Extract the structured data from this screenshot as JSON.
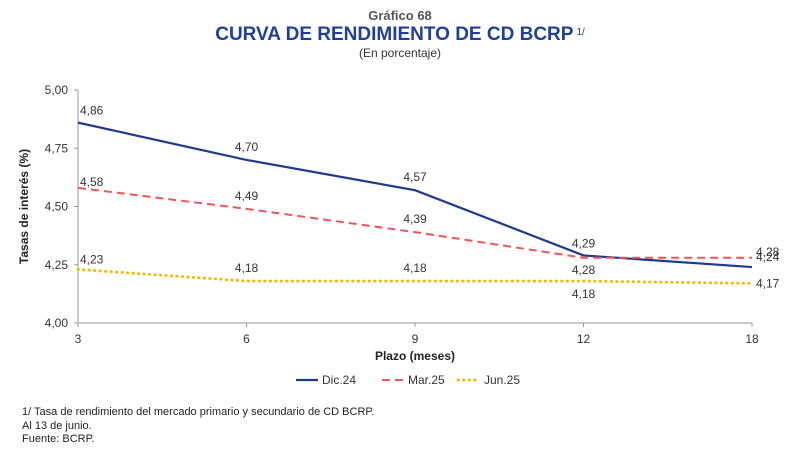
{
  "header": {
    "kicker": "Gráfico 68",
    "title": "CURVA DE RENDIMIENTO DE CD BCRP",
    "title_note": "1/",
    "subtitle": "(En porcentaje)"
  },
  "chart_data": {
    "type": "line",
    "x": [
      "3",
      "6",
      "9",
      "12",
      "18"
    ],
    "xlabel": "Plazo (meses)",
    "ylabel": "Tasas de interés (%)",
    "ylim": [
      4.0,
      5.0
    ],
    "yticks": [
      "4,00",
      "4,25",
      "4,50",
      "4,75",
      "5,00"
    ],
    "grid": false,
    "legend_position": "bottom",
    "series": [
      {
        "name": "Dic.24",
        "values": [
          4.86,
          4.7,
          4.57,
          4.29,
          4.24
        ],
        "labels": [
          "4,86",
          "4,70",
          "4,57",
          "4,29",
          "4,24"
        ],
        "color": "#1f3a8c",
        "style": "solid"
      },
      {
        "name": "Mar.25",
        "values": [
          4.58,
          4.49,
          4.39,
          4.28,
          4.28
        ],
        "labels": [
          "4,58",
          "4,49",
          "4,39",
          "4,28",
          "4,28"
        ],
        "color": "#f0545a",
        "style": "dashed"
      },
      {
        "name": "Jun.25",
        "values": [
          4.23,
          4.18,
          4.18,
          4.18,
          4.17
        ],
        "labels": [
          "4,23",
          "4,18",
          "4,18",
          "4,18",
          "4,17"
        ],
        "color": "#f5b800",
        "style": "dotted"
      }
    ]
  },
  "footnotes": {
    "note1": "1/ Tasa de rendimiento del mercado primario y secundario de CD BCRP.",
    "note2": "Al 13 de junio.",
    "source": "Fuente: BCRP."
  }
}
